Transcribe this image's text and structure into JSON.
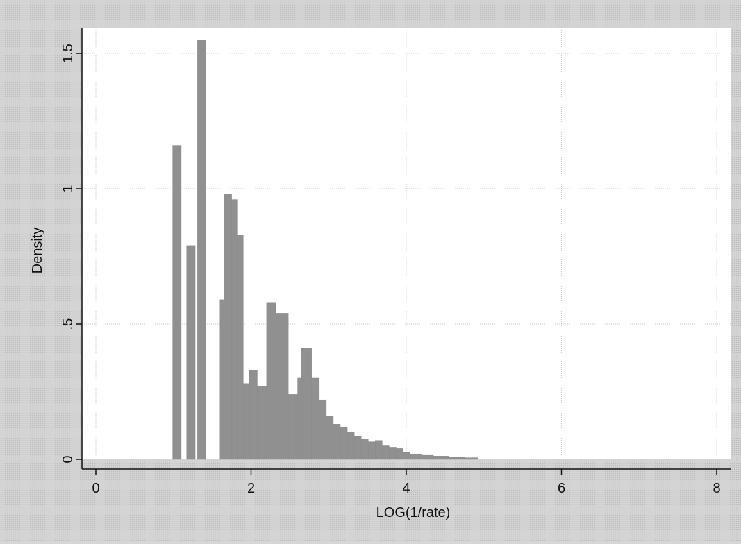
{
  "chart_data": {
    "type": "bar",
    "title": "",
    "xlabel": "LOG(1/rate)",
    "ylabel": "Density",
    "xlim": [
      0,
      8
    ],
    "ylim": [
      0,
      1.6
    ],
    "x_ticks": [
      0,
      2,
      4,
      6,
      8
    ],
    "x_tick_labels": [
      "0",
      "2",
      "4",
      "6",
      "8"
    ],
    "y_ticks": [
      0,
      0.5,
      1,
      1.5
    ],
    "y_tick_labels": [
      "0",
      ".5",
      "1",
      "1.5"
    ],
    "grid": true,
    "legend": "none",
    "colors": {
      "bar": "#909090",
      "plot_background": "#ffffff",
      "figure_background": "#d4d4d4",
      "axis": "#111111"
    },
    "bins": [
      {
        "x0": 0.99,
        "x1": 1.1,
        "value": 1.16
      },
      {
        "x0": 1.17,
        "x1": 1.28,
        "value": 0.79
      },
      {
        "x0": 1.31,
        "x1": 1.42,
        "value": 1.55
      },
      {
        "x0": 1.6,
        "x1": 1.65,
        "value": 0.59
      },
      {
        "x0": 1.65,
        "x1": 1.75,
        "value": 0.98
      },
      {
        "x0": 1.75,
        "x1": 1.82,
        "value": 0.96
      },
      {
        "x0": 1.82,
        "x1": 1.9,
        "value": 0.83
      },
      {
        "x0": 1.9,
        "x1": 1.98,
        "value": 0.28
      },
      {
        "x0": 1.98,
        "x1": 2.08,
        "value": 0.33
      },
      {
        "x0": 2.08,
        "x1": 2.2,
        "value": 0.27
      },
      {
        "x0": 2.2,
        "x1": 2.32,
        "value": 0.58
      },
      {
        "x0": 2.32,
        "x1": 2.48,
        "value": 0.54
      },
      {
        "x0": 2.48,
        "x1": 2.6,
        "value": 0.24
      },
      {
        "x0": 2.6,
        "x1": 2.65,
        "value": 0.3
      },
      {
        "x0": 2.65,
        "x1": 2.78,
        "value": 0.41
      },
      {
        "x0": 2.78,
        "x1": 2.88,
        "value": 0.3
      },
      {
        "x0": 2.88,
        "x1": 2.97,
        "value": 0.22
      },
      {
        "x0": 2.97,
        "x1": 3.06,
        "value": 0.16
      },
      {
        "x0": 3.06,
        "x1": 3.15,
        "value": 0.13
      },
      {
        "x0": 3.15,
        "x1": 3.24,
        "value": 0.12
      },
      {
        "x0": 3.24,
        "x1": 3.33,
        "value": 0.1
      },
      {
        "x0": 3.33,
        "x1": 3.42,
        "value": 0.085
      },
      {
        "x0": 3.42,
        "x1": 3.51,
        "value": 0.075
      },
      {
        "x0": 3.51,
        "x1": 3.6,
        "value": 0.065
      },
      {
        "x0": 3.6,
        "x1": 3.69,
        "value": 0.07
      },
      {
        "x0": 3.69,
        "x1": 3.78,
        "value": 0.05
      },
      {
        "x0": 3.78,
        "x1": 3.87,
        "value": 0.045
      },
      {
        "x0": 3.87,
        "x1": 3.96,
        "value": 0.04
      },
      {
        "x0": 3.96,
        "x1": 4.05,
        "value": 0.025
      },
      {
        "x0": 4.05,
        "x1": 4.2,
        "value": 0.02
      },
      {
        "x0": 4.2,
        "x1": 4.35,
        "value": 0.015
      },
      {
        "x0": 4.35,
        "x1": 4.55,
        "value": 0.012
      },
      {
        "x0": 4.55,
        "x1": 4.75,
        "value": 0.008
      },
      {
        "x0": 4.75,
        "x1": 4.92,
        "value": 0.006
      }
    ]
  }
}
